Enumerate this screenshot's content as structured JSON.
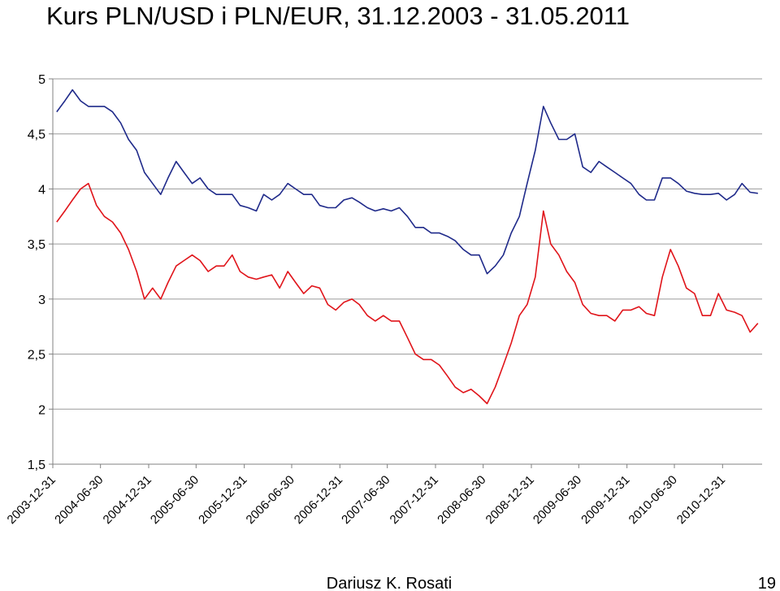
{
  "chart_data": {
    "type": "line",
    "title": "Kurs PLN/USD i PLN/EUR, 31.12.2003 - 31.05.2011",
    "footer": "Dariusz K. Rosati",
    "page_number": "19",
    "x": [
      "2004-01-15",
      "2004-02-15",
      "2004-03-15",
      "2004-04-15",
      "2004-05-15",
      "2004-06-15",
      "2004-07-15",
      "2004-08-15",
      "2004-09-15",
      "2004-10-15",
      "2004-11-15",
      "2004-12-15",
      "2005-01-15",
      "2005-02-15",
      "2005-03-15",
      "2005-04-15",
      "2005-05-15",
      "2005-06-15",
      "2005-07-15",
      "2005-08-15",
      "2005-09-15",
      "2005-10-15",
      "2005-11-15",
      "2005-12-15",
      "2006-01-15",
      "2006-02-15",
      "2006-03-15",
      "2006-04-15",
      "2006-05-15",
      "2006-06-15",
      "2006-07-15",
      "2006-08-15",
      "2006-09-15",
      "2006-10-15",
      "2006-11-15",
      "2006-12-15",
      "2007-01-15",
      "2007-02-15",
      "2007-03-15",
      "2007-04-15",
      "2007-05-15",
      "2007-06-15",
      "2007-07-15",
      "2007-08-15",
      "2007-09-15",
      "2007-10-15",
      "2007-11-15",
      "2007-12-15",
      "2008-01-15",
      "2008-02-15",
      "2008-03-15",
      "2008-04-15",
      "2008-05-15",
      "2008-06-15",
      "2008-07-15",
      "2008-08-15",
      "2008-09-15",
      "2008-10-15",
      "2008-11-15",
      "2008-12-15",
      "2009-01-15",
      "2009-02-15",
      "2009-03-15",
      "2009-04-15",
      "2009-05-15",
      "2009-06-15",
      "2009-07-15",
      "2009-08-15",
      "2009-09-15",
      "2009-10-15",
      "2009-11-15",
      "2009-12-15",
      "2010-01-15",
      "2010-02-15",
      "2010-03-15",
      "2010-04-15",
      "2010-05-15",
      "2010-06-15",
      "2010-07-15",
      "2010-08-15",
      "2010-09-15",
      "2010-10-15",
      "2010-11-15",
      "2010-12-15",
      "2011-01-15",
      "2011-02-15",
      "2011-03-15",
      "2011-04-15",
      "2011-05-15"
    ],
    "series": [
      {
        "color": "#1f2a8a",
        "values": [
          4.7,
          4.8,
          4.9,
          4.8,
          4.75,
          4.75,
          4.75,
          4.7,
          4.6,
          4.45,
          4.35,
          4.15,
          4.05,
          3.95,
          4.1,
          4.25,
          4.15,
          4.05,
          4.1,
          4.0,
          3.95,
          3.95,
          3.95,
          3.85,
          3.83,
          3.8,
          3.95,
          3.9,
          3.95,
          4.05,
          4.0,
          3.95,
          3.95,
          3.85,
          3.83,
          3.83,
          3.9,
          3.92,
          3.88,
          3.83,
          3.8,
          3.82,
          3.8,
          3.83,
          3.75,
          3.65,
          3.65,
          3.6,
          3.6,
          3.57,
          3.53,
          3.45,
          3.4,
          3.4,
          3.23,
          3.3,
          3.4,
          3.6,
          3.75,
          4.05,
          4.35,
          4.75,
          4.6,
          4.45,
          4.45,
          4.5,
          4.2,
          4.15,
          4.25,
          4.2,
          4.15,
          4.1,
          4.05,
          3.95,
          3.9,
          3.9,
          4.1,
          4.1,
          4.05,
          3.98,
          3.96,
          3.95,
          3.95,
          3.96,
          3.9,
          3.95,
          4.05,
          3.97,
          3.96
        ]
      },
      {
        "color": "#e0141a",
        "values": [
          3.7,
          3.8,
          3.9,
          4.0,
          4.05,
          3.85,
          3.75,
          3.7,
          3.6,
          3.45,
          3.25,
          3.0,
          3.1,
          3.0,
          3.15,
          3.3,
          3.35,
          3.4,
          3.35,
          3.25,
          3.3,
          3.3,
          3.4,
          3.25,
          3.2,
          3.18,
          3.2,
          3.22,
          3.1,
          3.25,
          3.15,
          3.05,
          3.12,
          3.1,
          2.95,
          2.9,
          2.97,
          3.0,
          2.95,
          2.85,
          2.8,
          2.85,
          2.8,
          2.8,
          2.65,
          2.5,
          2.45,
          2.45,
          2.4,
          2.3,
          2.2,
          2.15,
          2.18,
          2.12,
          2.05,
          2.2,
          2.4,
          2.6,
          2.85,
          2.95,
          3.2,
          3.8,
          3.5,
          3.4,
          3.25,
          3.15,
          2.95,
          2.87,
          2.85,
          2.85,
          2.8,
          2.9,
          2.9,
          2.93,
          2.87,
          2.85,
          3.2,
          3.45,
          3.3,
          3.1,
          3.05,
          2.85,
          2.85,
          3.05,
          2.9,
          2.88,
          2.85,
          2.7,
          2.78
        ]
      }
    ],
    "xlim": [
      "2003-12-31",
      "2011-05-31"
    ],
    "xticks": [
      "2003-12-31",
      "2004-06-30",
      "2004-12-31",
      "2005-06-30",
      "2005-12-31",
      "2006-06-30",
      "2006-12-31",
      "2007-06-30",
      "2007-12-31",
      "2008-06-30",
      "2008-12-31",
      "2009-06-30",
      "2009-12-31",
      "2010-06-30",
      "2010-12-31"
    ],
    "ylim": [
      1.5,
      5
    ],
    "yticks": [
      {
        "value": 1.5,
        "label": "1,5"
      },
      2,
      {
        "value": 2.5,
        "label": "2,5"
      },
      3,
      {
        "value": 3.5,
        "label": "3,5"
      },
      4,
      {
        "value": 4.5,
        "label": "4,5"
      },
      5
    ],
    "grid": true
  }
}
